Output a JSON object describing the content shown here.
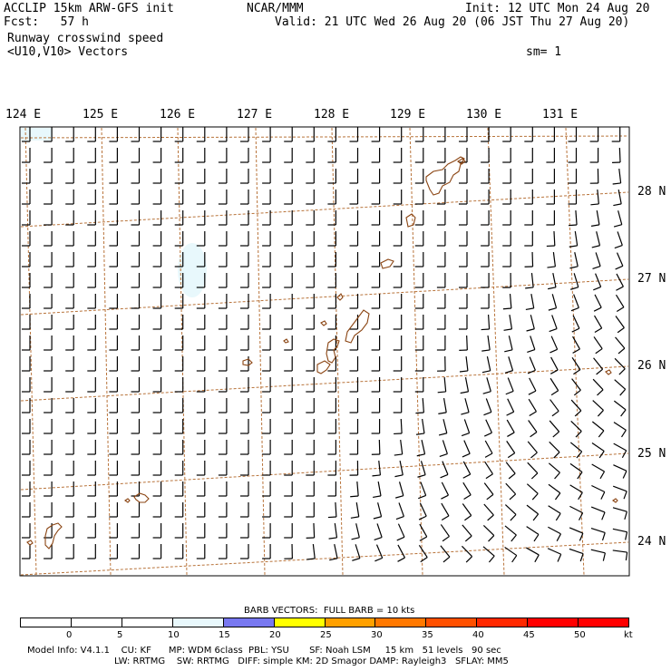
{
  "header": {
    "model": "ACCLIP 15km ARW-GFS init",
    "fcst": "Fcst:   57 h",
    "org": "NCAR/MMM",
    "init": "Init: 12 UTC Mon 24 Aug 20",
    "valid": "Valid: 21 UTC Wed 26 Aug 20 (06 JST Thu 27 Aug 20)",
    "field": "Runway crosswind speed",
    "vectors": "<U10,V10> Vectors",
    "smooth": "sm= 1"
  },
  "map": {
    "lon_labels": [
      "124 E",
      "125 E",
      "126 E",
      "127 E",
      "128 E",
      "129 E",
      "130 E",
      "131 E"
    ],
    "lat_labels": [
      "28 N",
      "27 N",
      "26 N",
      "25 N",
      "24 N"
    ],
    "region": "East China Sea / Ryukyu Islands",
    "coast_color": "#8b4513",
    "grid_color": "#b8733a",
    "barb_color": "#000000",
    "shade_color": "#e8f8fc"
  },
  "legend": {
    "barb_title": "BARB VECTORS:  FULL BARB = 10 kts",
    "ticks": [
      "0",
      "5",
      "10",
      "15",
      "20",
      "25",
      "30",
      "35",
      "40",
      "45",
      "50"
    ],
    "unit": "kt",
    "colors": [
      "#ffffff",
      "#ffffff",
      "#ffffff",
      "#e8f8fc",
      "#7878f0",
      "#ffff00",
      "#ffa000",
      "#ff7800",
      "#ff5000",
      "#ff2800",
      "#ff0000",
      "#ff0000"
    ]
  },
  "footer": {
    "line1": "Model Info: V4.1.1    CU: KF      MP: WDM 6class  PBL: YSU       SF: Noah LSM     15 km   51 levels   90 sec",
    "line2": "LW: RRTMG    SW: RRTMG   DIFF: simple KM: 2D Smagor DAMP: Rayleigh3   SFLAY: MM5"
  }
}
